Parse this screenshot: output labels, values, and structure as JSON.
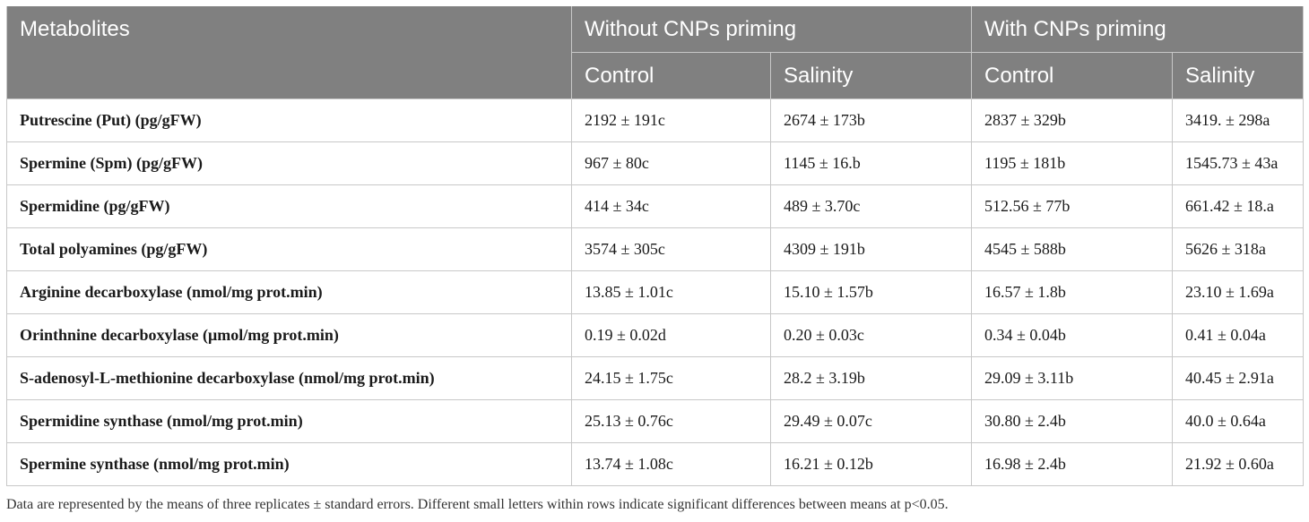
{
  "table": {
    "header": {
      "metabolites": "Metabolites",
      "group_without": "Without CNPs priming",
      "group_with": "With CNPs priming",
      "sub": [
        "Control",
        "Salinity",
        "Control",
        "Salinity"
      ]
    },
    "rows": [
      {
        "label": "Putrescine (Put) (pg/gFW)",
        "values": [
          "2192 ± 191c",
          "2674 ± 173b",
          "2837 ± 329b",
          "3419. ± 298a"
        ]
      },
      {
        "label": "Spermine (Spm) (pg/gFW)",
        "values": [
          "967 ± 80c",
          "1145 ± 16.b",
          "1195 ± 181b",
          "1545.73 ± 43a"
        ]
      },
      {
        "label": "Spermidine (pg/gFW)",
        "values": [
          "414 ± 34c",
          "489 ± 3.70c",
          "512.56 ± 77b",
          "661.42 ± 18.a"
        ]
      },
      {
        "label": "Total polyamines (pg/gFW)",
        "values": [
          "3574 ± 305c",
          "4309 ± 191b",
          "4545 ± 588b",
          "5626 ± 318a"
        ]
      },
      {
        "label": "Arginine decarboxylase (nmol/mg prot.min)",
        "values": [
          "13.85 ± 1.01c",
          "15.10 ± 1.57b",
          "16.57 ± 1.8b",
          "23.10 ± 1.69a"
        ]
      },
      {
        "label": "Orinthnine decarboxylase (μmol/mg prot.min)",
        "values": [
          "0.19 ± 0.02d",
          "0.20 ± 0.03c",
          "0.34 ± 0.04b",
          "0.41 ± 0.04a"
        ]
      },
      {
        "label": "S-adenosyl-L-methionine decarboxylase (nmol/mg prot.min)",
        "values": [
          "24.15 ± 1.75c",
          "28.2 ± 3.19b",
          "29.09 ± 3.11b",
          "40.45 ± 2.91a"
        ]
      },
      {
        "label": "Spermidine synthase (nmol/mg prot.min)",
        "values": [
          "25.13 ± 0.76c",
          "29.49 ± 0.07c",
          "30.80 ± 2.4b",
          "40.0 ± 0.64a"
        ]
      },
      {
        "label": "Spermine synthase (nmol/mg prot.min)",
        "values": [
          "13.74 ± 1.08c",
          "16.21 ± 0.12b",
          "16.98 ± 2.4b",
          "21.92 ± 0.60a"
        ]
      }
    ]
  },
  "footnote": "Data are represented by the means of three replicates ± standard errors. Different small letters within rows indicate significant differences between means at p<0.05."
}
